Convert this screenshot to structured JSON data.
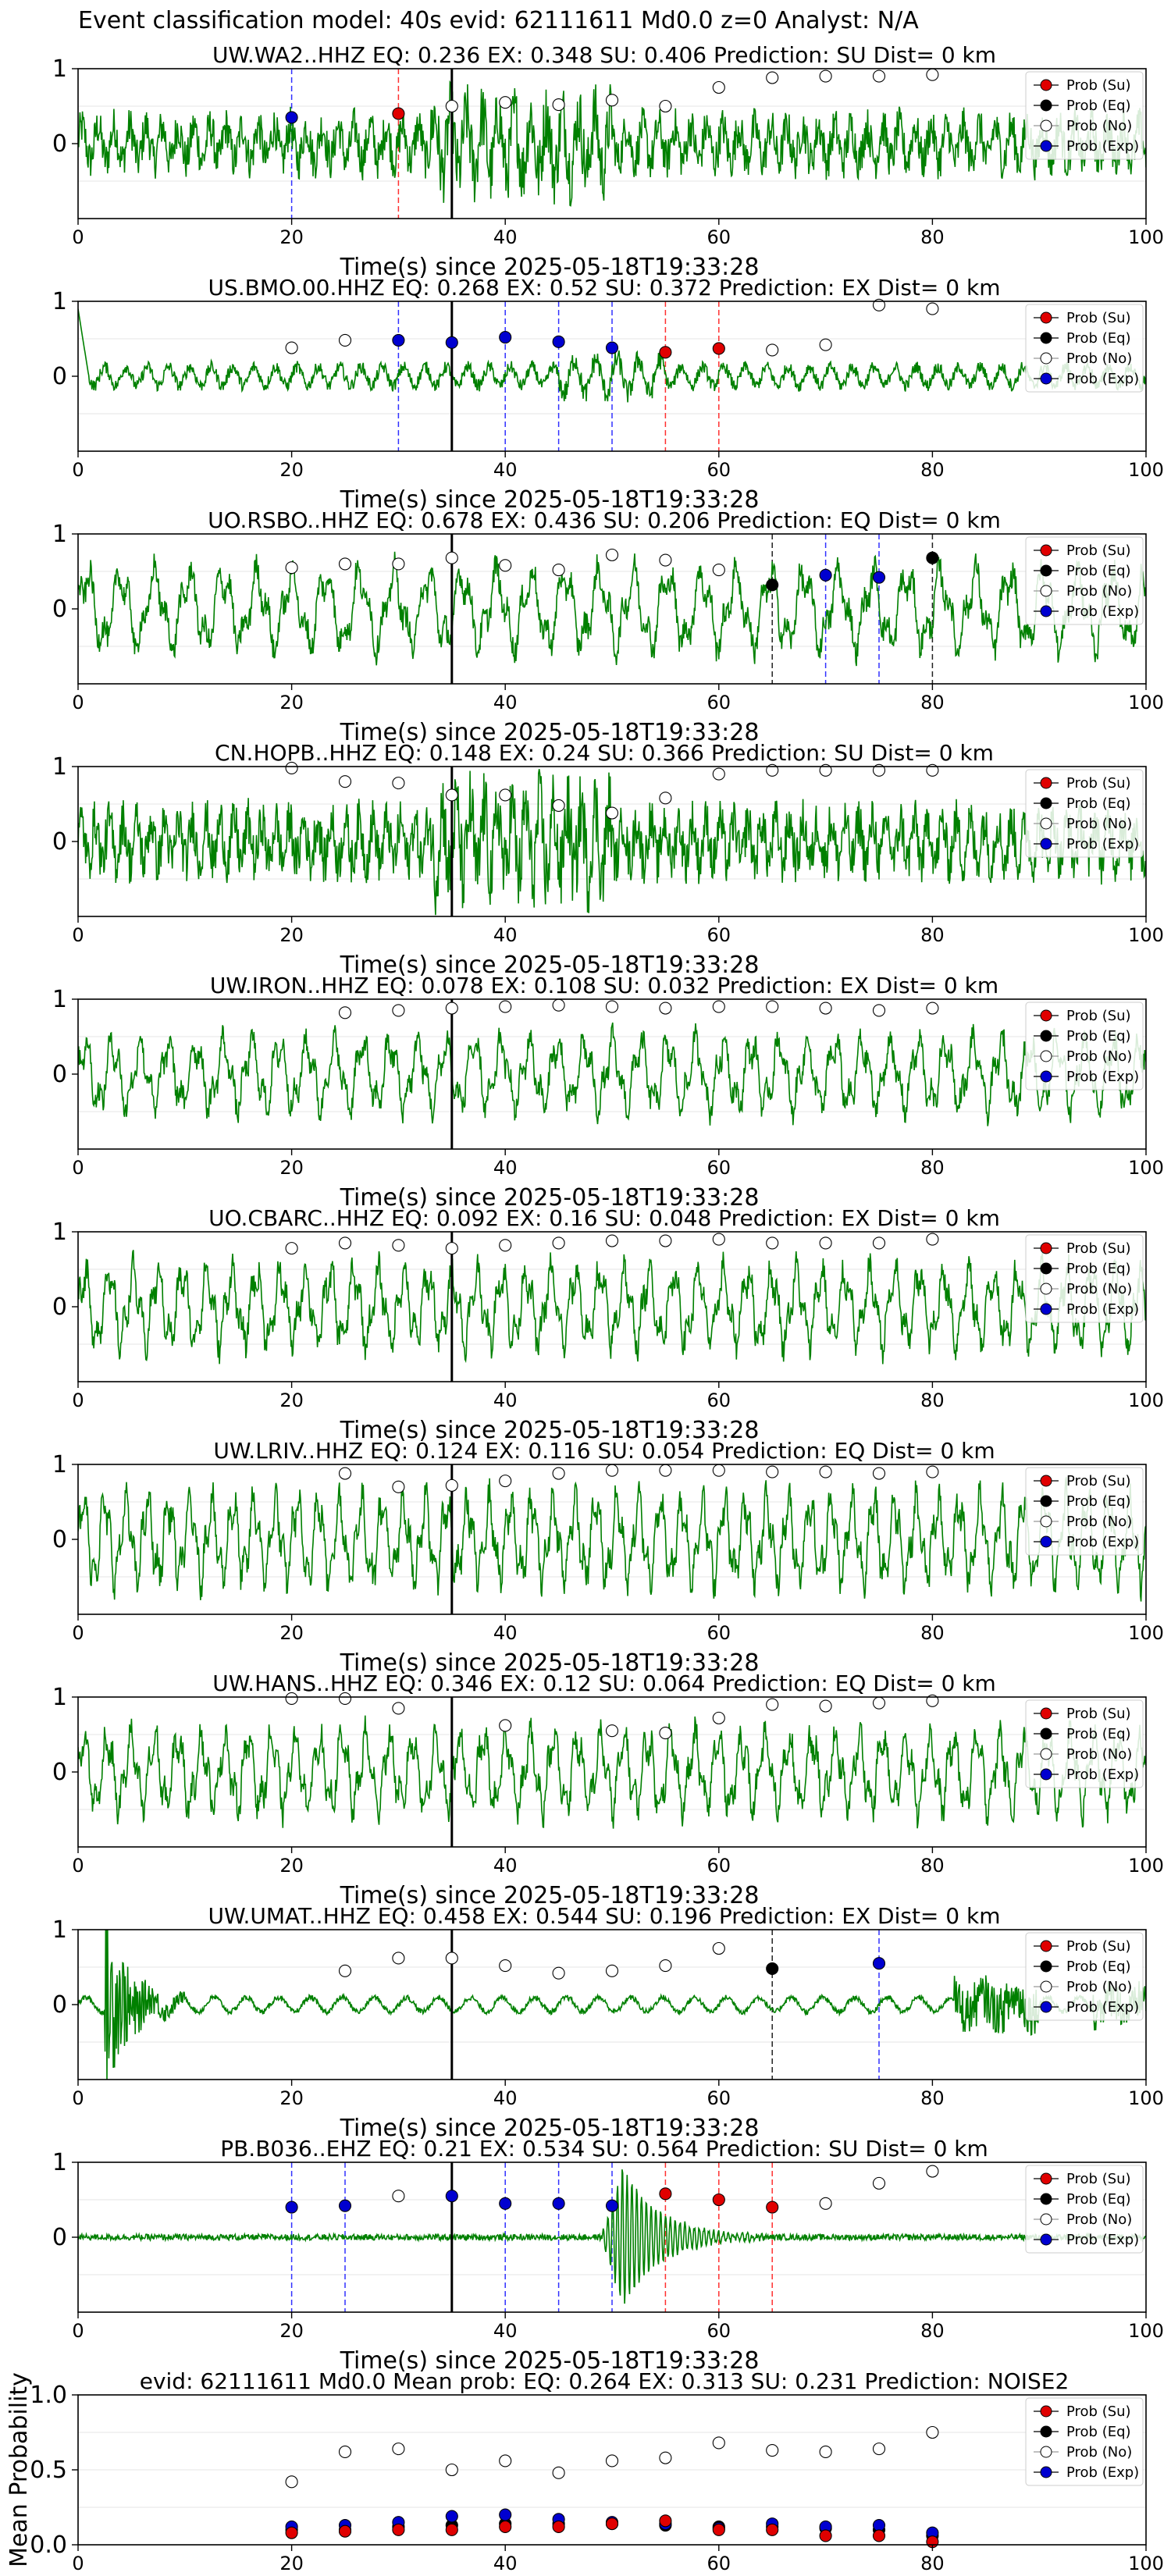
{
  "suptitle": "Event classification model: 40s evid: 62111611 Md0.0 z=0 Analyst: N/A",
  "legend_labels": [
    "Prob (Su)",
    "Prob (Eq)",
    "Prob (No)",
    "Prob (Exp)"
  ],
  "colors": {
    "trace": "#008000",
    "su": "#e00000",
    "eq": "#000000",
    "no": "#ffffff",
    "exp": "#0000d0",
    "origin": "#000000"
  },
  "chart_data": [
    {
      "type": "line",
      "title": "UW.WA2..HHZ   EQ: 0.236  EX: 0.348  SU: 0.406   Prediction: SU    Dist= 0 km",
      "xlabel": "Time(s) since 2025-05-18T19:33:28",
      "ylabel": "",
      "xlim": [
        0,
        100
      ],
      "ylim": [
        -1,
        1
      ],
      "xticks": [
        0,
        20,
        40,
        60,
        80,
        100
      ],
      "yticks": [
        0,
        1
      ],
      "origin_time": 35,
      "legend": "right",
      "trace": {
        "style": "noisy",
        "amp": 0.38,
        "period": 1.5
      },
      "prob_no": {
        "x": [
          35,
          40,
          45,
          50,
          55,
          60,
          65,
          70,
          75,
          80
        ],
        "y": [
          0.5,
          0.55,
          0.52,
          0.58,
          0.5,
          0.75,
          0.88,
          0.9,
          0.9,
          0.92
        ]
      },
      "prob_su": {
        "x": [
          30
        ],
        "y": [
          0.4
        ]
      },
      "prob_eq": {
        "x": [],
        "y": []
      },
      "prob_exp": {
        "x": [
          20
        ],
        "y": [
          0.35
        ]
      },
      "vlines_su": [
        30
      ],
      "vlines_exp": [
        20
      ]
    },
    {
      "type": "line",
      "title": "US.BMO.00.HHZ   EQ: 0.268  EX: 0.52  SU: 0.372   Prediction: EX    Dist= 0 km",
      "xlabel": "Time(s) since 2025-05-18T19:33:28",
      "ylabel": "",
      "xlim": [
        0,
        100
      ],
      "ylim": [
        -1,
        1
      ],
      "xticks": [
        0,
        20,
        40,
        60,
        80,
        100
      ],
      "yticks": [
        0,
        1
      ],
      "origin_time": 35,
      "legend": "right",
      "trace": {
        "style": "calm",
        "amp": 0.18,
        "period": 2.0
      },
      "prob_no": {
        "x": [
          20,
          25,
          65,
          70,
          75,
          80
        ],
        "y": [
          0.38,
          0.48,
          0.35,
          0.42,
          0.95,
          0.9
        ]
      },
      "prob_su": {
        "x": [
          55,
          60
        ],
        "y": [
          0.32,
          0.37
        ]
      },
      "prob_eq": {
        "x": [],
        "y": []
      },
      "prob_exp": {
        "x": [
          30,
          35,
          40,
          45,
          50
        ],
        "y": [
          0.48,
          0.45,
          0.52,
          0.46,
          0.38
        ]
      },
      "vlines_su": [
        55,
        60
      ],
      "vlines_exp": [
        30,
        40,
        45,
        50
      ]
    },
    {
      "type": "line",
      "title": "UO.RSBO..HHZ   EQ: 0.678  EX: 0.436  SU: 0.206   Prediction: EQ    Dist= 0 km",
      "xlabel": "Time(s) since 2025-05-18T19:33:28",
      "ylabel": "",
      "xlim": [
        0,
        100
      ],
      "ylim": [
        -1,
        1
      ],
      "xticks": [
        0,
        20,
        40,
        60,
        80,
        100
      ],
      "yticks": [
        0,
        1
      ],
      "origin_time": 35,
      "legend": "right",
      "trace": {
        "style": "wave",
        "amp": 0.55,
        "period": 3.2
      },
      "prob_no": {
        "x": [
          20,
          25,
          30,
          35,
          40,
          45,
          50,
          55,
          60
        ],
        "y": [
          0.55,
          0.6,
          0.6,
          0.68,
          0.58,
          0.52,
          0.72,
          0.65,
          0.52
        ]
      },
      "prob_su": {
        "x": [],
        "y": []
      },
      "prob_eq": {
        "x": [
          65,
          80
        ],
        "y": [
          0.32,
          0.68
        ]
      },
      "prob_exp": {
        "x": [
          70,
          75
        ],
        "y": [
          0.45,
          0.42
        ]
      },
      "vlines_eq": [
        65,
        80
      ],
      "vlines_exp": [
        70,
        75
      ]
    },
    {
      "type": "line",
      "title": "CN.HOPB..HHZ   EQ: 0.148  EX: 0.24  SU: 0.366   Prediction: SU    Dist= 0 km",
      "xlabel": "Time(s) since 2025-05-18T19:33:28",
      "ylabel": "",
      "xlim": [
        0,
        100
      ],
      "ylim": [
        -1,
        1
      ],
      "xticks": [
        0,
        20,
        40,
        60,
        80,
        100
      ],
      "yticks": [
        0,
        1
      ],
      "origin_time": 35,
      "legend": "right",
      "trace": {
        "style": "noisy",
        "amp": 0.45,
        "period": 1.3
      },
      "prob_no": {
        "x": [
          20,
          25,
          30,
          35,
          40,
          45,
          50,
          55,
          60,
          65,
          70,
          75,
          80
        ],
        "y": [
          0.98,
          0.8,
          0.78,
          0.62,
          0.62,
          0.48,
          0.38,
          0.58,
          0.9,
          0.95,
          0.95,
          0.95,
          0.95
        ]
      },
      "prob_su": {
        "x": [],
        "y": []
      },
      "prob_eq": {
        "x": [],
        "y": []
      },
      "prob_exp": {
        "x": [],
        "y": []
      }
    },
    {
      "type": "line",
      "title": "UW.IRON..HHZ   EQ: 0.078  EX: 0.108  SU: 0.032   Prediction: EX    Dist= 0 km",
      "xlabel": "Time(s) since 2025-05-18T19:33:28",
      "ylabel": "",
      "xlim": [
        0,
        100
      ],
      "ylim": [
        -1,
        1
      ],
      "xticks": [
        0,
        20,
        40,
        60,
        80,
        100
      ],
      "yticks": [
        0,
        1
      ],
      "origin_time": 35,
      "legend": "right",
      "trace": {
        "style": "wave",
        "amp": 0.5,
        "period": 2.6
      },
      "prob_no": {
        "x": [
          25,
          30,
          35,
          40,
          45,
          50,
          55,
          60,
          65,
          70,
          75,
          80
        ],
        "y": [
          0.82,
          0.85,
          0.88,
          0.9,
          0.92,
          0.9,
          0.88,
          0.9,
          0.9,
          0.88,
          0.85,
          0.88
        ]
      },
      "prob_su": {
        "x": [],
        "y": []
      },
      "prob_eq": {
        "x": [],
        "y": []
      },
      "prob_exp": {
        "x": [],
        "y": []
      }
    },
    {
      "type": "line",
      "title": "UO.CBARC..HHZ   EQ: 0.092  EX: 0.16  SU: 0.048   Prediction: EX    Dist= 0 km",
      "xlabel": "Time(s) since 2025-05-18T19:33:28",
      "ylabel": "",
      "xlim": [
        0,
        100
      ],
      "ylim": [
        -1,
        1
      ],
      "xticks": [
        0,
        20,
        40,
        60,
        80,
        100
      ],
      "yticks": [
        0,
        1
      ],
      "origin_time": 35,
      "legend": "right",
      "trace": {
        "style": "wave",
        "amp": 0.55,
        "period": 2.3
      },
      "prob_no": {
        "x": [
          20,
          25,
          30,
          35,
          40,
          45,
          50,
          55,
          60,
          65,
          70,
          75,
          80
        ],
        "y": [
          0.78,
          0.85,
          0.82,
          0.78,
          0.82,
          0.85,
          0.88,
          0.88,
          0.9,
          0.85,
          0.85,
          0.85,
          0.9
        ]
      },
      "prob_su": {
        "x": [],
        "y": []
      },
      "prob_eq": {
        "x": [],
        "y": []
      },
      "prob_exp": {
        "x": [],
        "y": []
      }
    },
    {
      "type": "line",
      "title": "UW.LRIV..HHZ   EQ: 0.124  EX: 0.116  SU: 0.054   Prediction: EQ    Dist= 0 km",
      "xlabel": "Time(s) since 2025-05-18T19:33:28",
      "ylabel": "",
      "xlim": [
        0,
        100
      ],
      "ylim": [
        -1,
        1
      ],
      "xticks": [
        0,
        20,
        40,
        60,
        80,
        100
      ],
      "yticks": [
        0,
        1
      ],
      "origin_time": 35,
      "legend": "right",
      "trace": {
        "style": "wave",
        "amp": 0.6,
        "period": 2.0
      },
      "prob_no": {
        "x": [
          25,
          30,
          35,
          40,
          45,
          50,
          55,
          60,
          65,
          70,
          75,
          80
        ],
        "y": [
          0.88,
          0.7,
          0.72,
          0.78,
          0.88,
          0.92,
          0.92,
          0.92,
          0.9,
          0.9,
          0.88,
          0.9
        ]
      },
      "prob_su": {
        "x": [],
        "y": []
      },
      "prob_eq": {
        "x": [],
        "y": []
      },
      "prob_exp": {
        "x": [],
        "y": []
      }
    },
    {
      "type": "line",
      "title": "UW.HANS..HHZ   EQ: 0.346  EX: 0.12  SU: 0.064   Prediction: EQ    Dist= 0 km",
      "xlabel": "Time(s) since 2025-05-18T19:33:28",
      "ylabel": "",
      "xlim": [
        0,
        100
      ],
      "ylim": [
        -1,
        1
      ],
      "xticks": [
        0,
        20,
        40,
        60,
        80,
        100
      ],
      "yticks": [
        0,
        1
      ],
      "origin_time": 35,
      "legend": "right",
      "trace": {
        "style": "wave",
        "amp": 0.55,
        "period": 2.2
      },
      "prob_no": {
        "x": [
          20,
          25,
          30,
          40,
          50,
          55,
          60,
          65,
          70,
          75,
          80
        ],
        "y": [
          0.98,
          0.98,
          0.85,
          0.62,
          0.55,
          0.52,
          0.72,
          0.9,
          0.88,
          0.92,
          0.95
        ]
      },
      "prob_su": {
        "x": [],
        "y": []
      },
      "prob_eq": {
        "x": [],
        "y": []
      },
      "prob_exp": {
        "x": [],
        "y": []
      }
    },
    {
      "type": "line",
      "title": "UW.UMAT..HHZ   EQ: 0.458  EX: 0.544  SU: 0.196   Prediction: EX    Dist= 0 km",
      "xlabel": "Time(s) since 2025-05-18T19:33:28",
      "ylabel": "",
      "xlim": [
        0,
        100
      ],
      "ylim": [
        -1,
        1
      ],
      "xticks": [
        0,
        20,
        40,
        60,
        80,
        100
      ],
      "yticks": [
        0,
        1
      ],
      "origin_time": 35,
      "legend": "right",
      "trace": {
        "style": "umat",
        "amp": 0.12,
        "period": 3.0
      },
      "prob_no": {
        "x": [
          25,
          30,
          35,
          40,
          45,
          50,
          55,
          60
        ],
        "y": [
          0.45,
          0.62,
          0.62,
          0.52,
          0.42,
          0.45,
          0.52,
          0.75
        ]
      },
      "prob_su": {
        "x": [],
        "y": []
      },
      "prob_eq": {
        "x": [
          65
        ],
        "y": [
          0.48
        ]
      },
      "prob_exp": {
        "x": [
          75
        ],
        "y": [
          0.55
        ]
      },
      "vlines_eq": [
        65
      ],
      "vlines_exp": [
        75
      ]
    },
    {
      "type": "line",
      "title": "PB.B036..EHZ   EQ: 0.21  EX: 0.534  SU: 0.564   Prediction: SU    Dist= 0 km",
      "xlabel": "Time(s) since 2025-05-18T19:33:28",
      "ylabel": "",
      "xlim": [
        0,
        100
      ],
      "ylim": [
        -1,
        1
      ],
      "xticks": [
        0,
        20,
        40,
        60,
        80,
        100
      ],
      "yticks": [
        0,
        1
      ],
      "origin_time": 35,
      "legend": "right",
      "trace": {
        "style": "b036",
        "amp": 0.05,
        "period": 0.8
      },
      "prob_no": {
        "x": [
          30,
          70,
          75,
          80
        ],
        "y": [
          0.55,
          0.45,
          0.72,
          0.88
        ]
      },
      "prob_su": {
        "x": [
          55,
          60,
          65
        ],
        "y": [
          0.58,
          0.5,
          0.4
        ]
      },
      "prob_eq": {
        "x": [],
        "y": []
      },
      "prob_exp": {
        "x": [
          20,
          25,
          35,
          40,
          45,
          50
        ],
        "y": [
          0.4,
          0.42,
          0.55,
          0.45,
          0.45,
          0.42
        ]
      },
      "vlines_su": [
        55,
        60,
        65
      ],
      "vlines_exp": [
        20,
        25,
        40,
        45,
        50
      ]
    },
    {
      "type": "scatter",
      "title": "evid: 62111611  Md0.0   Mean prob:   EQ: 0.264  EX: 0.313  SU: 0.231   Prediction: NOISE2",
      "xlabel": "",
      "ylabel": "Mean Probability",
      "xlim": [
        0,
        100
      ],
      "ylim": [
        0,
        1
      ],
      "xticks": [
        0,
        20,
        40,
        60,
        80,
        100
      ],
      "yticks": [
        0.0,
        0.5,
        1.0
      ],
      "origin_time": null,
      "legend": "right",
      "prob_no": {
        "x": [
          20,
          25,
          30,
          35,
          40,
          45,
          50,
          55,
          60,
          65,
          70,
          75,
          80
        ],
        "y": [
          0.42,
          0.62,
          0.64,
          0.5,
          0.56,
          0.48,
          0.56,
          0.58,
          0.68,
          0.63,
          0.62,
          0.64,
          0.75
        ]
      },
      "prob_eq": {
        "x": [
          20,
          25,
          30,
          35,
          40,
          45,
          50,
          55,
          60,
          65,
          70,
          75,
          80
        ],
        "y": [
          0.1,
          0.1,
          0.12,
          0.13,
          0.14,
          0.14,
          0.14,
          0.13,
          0.12,
          0.12,
          0.11,
          0.1,
          0.06
        ]
      },
      "prob_exp": {
        "x": [
          20,
          25,
          30,
          35,
          40,
          45,
          50,
          55,
          60,
          65,
          70,
          75,
          80
        ],
        "y": [
          0.12,
          0.13,
          0.15,
          0.19,
          0.2,
          0.17,
          0.15,
          0.14,
          0.11,
          0.14,
          0.12,
          0.13,
          0.08
        ]
      },
      "prob_su": {
        "x": [
          20,
          25,
          30,
          35,
          40,
          45,
          50,
          55,
          60,
          65,
          70,
          75,
          80
        ],
        "y": [
          0.08,
          0.09,
          0.1,
          0.1,
          0.12,
          0.12,
          0.14,
          0.16,
          0.1,
          0.1,
          0.06,
          0.06,
          0.02
        ]
      }
    }
  ]
}
